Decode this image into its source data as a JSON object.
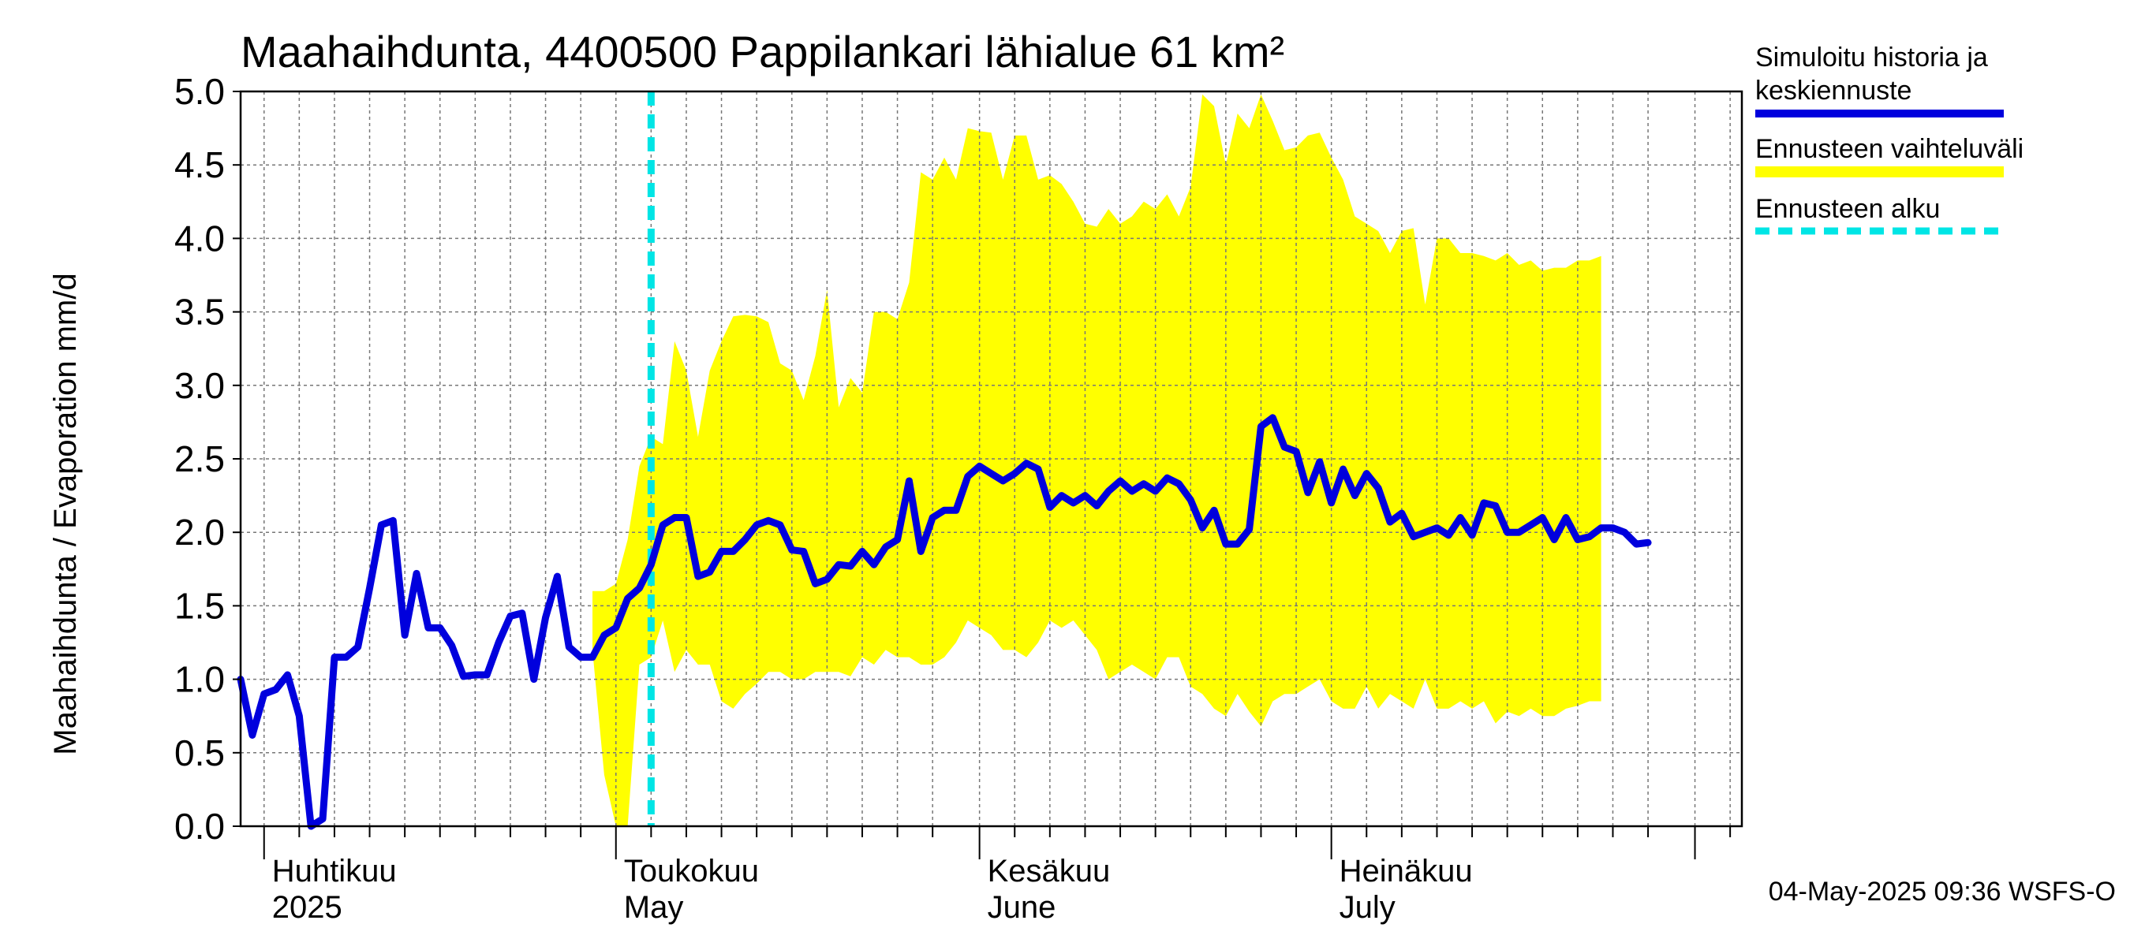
{
  "chart_data": {
    "type": "line",
    "title": "Maahaihdunta, 4400500 Pappilankari lähialue 61 km²",
    "ylabel": "Maahaihdunta / Evaporation   mm/d",
    "xlabel": "",
    "ylim": [
      0,
      5
    ],
    "yticks": [
      "0.0",
      "0.5",
      "1.0",
      "1.5",
      "2.0",
      "2.5",
      "3.0",
      "3.5",
      "4.0",
      "4.5",
      "5.0"
    ],
    "x_start": "2025-03-30",
    "x_end": "2025-08-05",
    "grid": true,
    "forecast_start": "2025-05-04",
    "month_labels": [
      {
        "date": "2025-04-01",
        "line1": "Huhtikuu",
        "line2": "2025"
      },
      {
        "date": "2025-05-01",
        "line1": "Toukokuu",
        "line2": "May"
      },
      {
        "date": "2025-06-01",
        "line1": "Kesäkuu",
        "line2": "June"
      },
      {
        "date": "2025-07-01",
        "line1": "Heinäkuu",
        "line2": "July"
      }
    ],
    "legend_position": "right",
    "legend": [
      {
        "label_line1": "Simuloitu historia ja",
        "label_line2": "keskiennuste",
        "color": "#0000dd",
        "style": "solid"
      },
      {
        "label_line1": "Ennusteen vaihteluväli",
        "label_line2": "",
        "color": "#ffff00",
        "style": "band"
      },
      {
        "label_line1": "Ennusteen alku",
        "label_line2": "",
        "color": "#00e5e5",
        "style": "dashed"
      }
    ],
    "footer": "04-May-2025 09:36 WSFS-O",
    "colors": {
      "mean": "#0000dd",
      "band": "#ffff00",
      "forecast_line": "#00e5e5",
      "grid": "#777777"
    },
    "series": [
      {
        "name": "Simuloitu historia ja keskiennuste",
        "points": [
          [
            "2025-03-30",
            1.0
          ],
          [
            "2025-03-31",
            0.62
          ],
          [
            "2025-04-01",
            0.9
          ],
          [
            "2025-04-02",
            0.93
          ],
          [
            "2025-04-03",
            1.03
          ],
          [
            "2025-04-04",
            0.75
          ],
          [
            "2025-04-05",
            0.0
          ],
          [
            "2025-04-06",
            0.05
          ],
          [
            "2025-04-07",
            1.15
          ],
          [
            "2025-04-08",
            1.15
          ],
          [
            "2025-04-09",
            1.22
          ],
          [
            "2025-04-10",
            1.62
          ],
          [
            "2025-04-11",
            2.05
          ],
          [
            "2025-04-12",
            2.08
          ],
          [
            "2025-04-13",
            1.3
          ],
          [
            "2025-04-14",
            1.72
          ],
          [
            "2025-04-15",
            1.35
          ],
          [
            "2025-04-16",
            1.35
          ],
          [
            "2025-04-17",
            1.23
          ],
          [
            "2025-04-18",
            1.02
          ],
          [
            "2025-04-19",
            1.03
          ],
          [
            "2025-04-20",
            1.03
          ],
          [
            "2025-04-21",
            1.25
          ],
          [
            "2025-04-22",
            1.43
          ],
          [
            "2025-04-23",
            1.45
          ],
          [
            "2025-04-24",
            1.0
          ],
          [
            "2025-04-25",
            1.42
          ],
          [
            "2025-04-26",
            1.7
          ],
          [
            "2025-04-27",
            1.22
          ],
          [
            "2025-04-28",
            1.15
          ],
          [
            "2025-04-29",
            1.15
          ],
          [
            "2025-04-30",
            1.3
          ],
          [
            "2025-05-01",
            1.35
          ],
          [
            "2025-05-02",
            1.55
          ],
          [
            "2025-05-03",
            1.62
          ],
          [
            "2025-05-04",
            1.78
          ],
          [
            "2025-05-05",
            2.05
          ],
          [
            "2025-05-06",
            2.1
          ],
          [
            "2025-05-07",
            2.1
          ],
          [
            "2025-05-08",
            1.7
          ],
          [
            "2025-05-09",
            1.73
          ],
          [
            "2025-05-10",
            1.87
          ],
          [
            "2025-05-11",
            1.87
          ],
          [
            "2025-05-12",
            1.95
          ],
          [
            "2025-05-13",
            2.05
          ],
          [
            "2025-05-14",
            2.08
          ],
          [
            "2025-05-15",
            2.05
          ],
          [
            "2025-05-16",
            1.88
          ],
          [
            "2025-05-17",
            1.87
          ],
          [
            "2025-05-18",
            1.65
          ],
          [
            "2025-05-19",
            1.68
          ],
          [
            "2025-05-20",
            1.78
          ],
          [
            "2025-05-21",
            1.77
          ],
          [
            "2025-05-22",
            1.87
          ],
          [
            "2025-05-23",
            1.78
          ],
          [
            "2025-05-24",
            1.9
          ],
          [
            "2025-05-25",
            1.95
          ],
          [
            "2025-05-26",
            2.35
          ],
          [
            "2025-05-27",
            1.87
          ],
          [
            "2025-05-28",
            2.1
          ],
          [
            "2025-05-29",
            2.15
          ],
          [
            "2025-05-30",
            2.15
          ],
          [
            "2025-05-31",
            2.38
          ],
          [
            "2025-06-01",
            2.45
          ],
          [
            "2025-06-02",
            2.4
          ],
          [
            "2025-06-03",
            2.35
          ],
          [
            "2025-06-04",
            2.4
          ],
          [
            "2025-06-05",
            2.47
          ],
          [
            "2025-06-06",
            2.43
          ],
          [
            "2025-06-07",
            2.17
          ],
          [
            "2025-06-08",
            2.25
          ],
          [
            "2025-06-09",
            2.2
          ],
          [
            "2025-06-10",
            2.25
          ],
          [
            "2025-06-11",
            2.18
          ],
          [
            "2025-06-12",
            2.28
          ],
          [
            "2025-06-13",
            2.35
          ],
          [
            "2025-06-14",
            2.28
          ],
          [
            "2025-06-15",
            2.33
          ],
          [
            "2025-06-16",
            2.28
          ],
          [
            "2025-06-17",
            2.37
          ],
          [
            "2025-06-18",
            2.33
          ],
          [
            "2025-06-19",
            2.22
          ],
          [
            "2025-06-20",
            2.03
          ],
          [
            "2025-06-21",
            2.15
          ],
          [
            "2025-06-22",
            1.92
          ],
          [
            "2025-06-23",
            1.92
          ],
          [
            "2025-06-24",
            2.02
          ],
          [
            "2025-06-25",
            2.72
          ],
          [
            "2025-06-26",
            2.78
          ],
          [
            "2025-06-27",
            2.58
          ],
          [
            "2025-06-28",
            2.55
          ],
          [
            "2025-06-29",
            2.27
          ],
          [
            "2025-06-30",
            2.48
          ],
          [
            "2025-07-01",
            2.2
          ],
          [
            "2025-07-02",
            2.43
          ],
          [
            "2025-07-03",
            2.25
          ],
          [
            "2025-07-04",
            2.4
          ],
          [
            "2025-07-05",
            2.3
          ],
          [
            "2025-07-06",
            2.07
          ],
          [
            "2025-07-07",
            2.13
          ],
          [
            "2025-07-08",
            1.97
          ],
          [
            "2025-07-09",
            2.0
          ],
          [
            "2025-07-10",
            2.03
          ],
          [
            "2025-07-11",
            1.98
          ],
          [
            "2025-07-12",
            2.1
          ],
          [
            "2025-07-13",
            1.98
          ],
          [
            "2025-07-14",
            2.2
          ],
          [
            "2025-07-15",
            2.18
          ],
          [
            "2025-07-16",
            2.0
          ],
          [
            "2025-07-17",
            2.0
          ],
          [
            "2025-07-18",
            2.05
          ],
          [
            "2025-07-19",
            2.1
          ],
          [
            "2025-07-20",
            1.95
          ],
          [
            "2025-07-21",
            2.1
          ],
          [
            "2025-07-22",
            1.95
          ],
          [
            "2025-07-23",
            1.97
          ],
          [
            "2025-07-24",
            2.03
          ],
          [
            "2025-07-25",
            2.03
          ],
          [
            "2025-07-26",
            2.0
          ],
          [
            "2025-07-27",
            1.92
          ],
          [
            "2025-07-28",
            1.93
          ]
        ]
      },
      {
        "name": "Ennusteen vaihteluväli",
        "band": [
          [
            "2025-04-29",
            1.6,
            1.2
          ],
          [
            "2025-04-30",
            1.6,
            0.35
          ],
          [
            "2025-05-01",
            1.65,
            0.0
          ],
          [
            "2025-05-02",
            1.95,
            0.0
          ],
          [
            "2025-05-03",
            2.45,
            1.1
          ],
          [
            "2025-05-04",
            2.65,
            1.15
          ],
          [
            "2025-05-05",
            2.6,
            1.4
          ],
          [
            "2025-05-06",
            3.3,
            1.05
          ],
          [
            "2025-05-07",
            3.1,
            1.2
          ],
          [
            "2025-05-08",
            2.65,
            1.1
          ],
          [
            "2025-05-09",
            3.1,
            1.1
          ],
          [
            "2025-05-10",
            3.3,
            0.85
          ],
          [
            "2025-05-11",
            3.47,
            0.8
          ],
          [
            "2025-05-12",
            3.48,
            0.9
          ],
          [
            "2025-05-13",
            3.47,
            0.97
          ],
          [
            "2025-05-14",
            3.43,
            1.05
          ],
          [
            "2025-05-15",
            3.15,
            1.05
          ],
          [
            "2025-05-16",
            3.1,
            1.0
          ],
          [
            "2025-05-17",
            2.9,
            1.0
          ],
          [
            "2025-05-18",
            3.2,
            1.05
          ],
          [
            "2025-05-19",
            3.65,
            1.05
          ],
          [
            "2025-05-20",
            2.85,
            1.05
          ],
          [
            "2025-05-21",
            3.05,
            1.02
          ],
          [
            "2025-05-22",
            2.95,
            1.15
          ],
          [
            "2025-05-23",
            3.5,
            1.1
          ],
          [
            "2025-05-24",
            3.5,
            1.2
          ],
          [
            "2025-05-25",
            3.45,
            1.15
          ],
          [
            "2025-05-26",
            3.7,
            1.15
          ],
          [
            "2025-05-27",
            4.45,
            1.1
          ],
          [
            "2025-05-28",
            4.4,
            1.1
          ],
          [
            "2025-05-29",
            4.55,
            1.15
          ],
          [
            "2025-05-30",
            4.4,
            1.25
          ],
          [
            "2025-05-31",
            4.75,
            1.4
          ],
          [
            "2025-06-01",
            4.73,
            1.35
          ],
          [
            "2025-06-02",
            4.72,
            1.3
          ],
          [
            "2025-06-03",
            4.4,
            1.2
          ],
          [
            "2025-06-04",
            4.7,
            1.2
          ],
          [
            "2025-06-05",
            4.7,
            1.15
          ],
          [
            "2025-06-06",
            4.4,
            1.25
          ],
          [
            "2025-06-07",
            4.43,
            1.4
          ],
          [
            "2025-06-08",
            4.37,
            1.35
          ],
          [
            "2025-06-09",
            4.25,
            1.4
          ],
          [
            "2025-06-10",
            4.1,
            1.3
          ],
          [
            "2025-06-11",
            4.08,
            1.2
          ],
          [
            "2025-06-12",
            4.2,
            1.0
          ],
          [
            "2025-06-13",
            4.1,
            1.05
          ],
          [
            "2025-06-14",
            4.15,
            1.1
          ],
          [
            "2025-06-15",
            4.25,
            1.05
          ],
          [
            "2025-06-16",
            4.2,
            1.0
          ],
          [
            "2025-06-17",
            4.3,
            1.15
          ],
          [
            "2025-06-18",
            4.15,
            1.15
          ],
          [
            "2025-06-19",
            4.35,
            0.95
          ],
          [
            "2025-06-20",
            4.98,
            0.9
          ],
          [
            "2025-06-21",
            4.9,
            0.8
          ],
          [
            "2025-06-22",
            4.5,
            0.75
          ],
          [
            "2025-06-23",
            4.85,
            0.9
          ],
          [
            "2025-06-24",
            4.75,
            0.78
          ],
          [
            "2025-06-25",
            4.98,
            0.68
          ],
          [
            "2025-06-26",
            4.8,
            0.85
          ],
          [
            "2025-06-27",
            4.6,
            0.9
          ],
          [
            "2025-06-28",
            4.62,
            0.9
          ],
          [
            "2025-06-29",
            4.7,
            0.95
          ],
          [
            "2025-06-30",
            4.72,
            1.0
          ],
          [
            "2025-07-01",
            4.55,
            0.85
          ],
          [
            "2025-07-02",
            4.4,
            0.8
          ],
          [
            "2025-07-03",
            4.15,
            0.8
          ],
          [
            "2025-07-04",
            4.1,
            0.95
          ],
          [
            "2025-07-05",
            4.05,
            0.8
          ],
          [
            "2025-07-06",
            3.9,
            0.9
          ],
          [
            "2025-07-07",
            4.05,
            0.85
          ],
          [
            "2025-07-08",
            4.07,
            0.8
          ],
          [
            "2025-07-09",
            3.55,
            1.0
          ],
          [
            "2025-07-10",
            4.0,
            0.8
          ],
          [
            "2025-07-11",
            4.0,
            0.8
          ],
          [
            "2025-07-12",
            3.9,
            0.85
          ],
          [
            "2025-07-13",
            3.9,
            0.8
          ],
          [
            "2025-07-14",
            3.88,
            0.85
          ],
          [
            "2025-07-15",
            3.85,
            0.7
          ],
          [
            "2025-07-16",
            3.9,
            0.78
          ],
          [
            "2025-07-17",
            3.82,
            0.75
          ],
          [
            "2025-07-18",
            3.85,
            0.8
          ],
          [
            "2025-07-19",
            3.78,
            0.75
          ],
          [
            "2025-07-20",
            3.8,
            0.75
          ],
          [
            "2025-07-21",
            3.8,
            0.8
          ],
          [
            "2025-07-22",
            3.85,
            0.82
          ],
          [
            "2025-07-23",
            3.85,
            0.85
          ],
          [
            "2025-07-24",
            3.88,
            0.85
          ]
        ]
      }
    ]
  }
}
